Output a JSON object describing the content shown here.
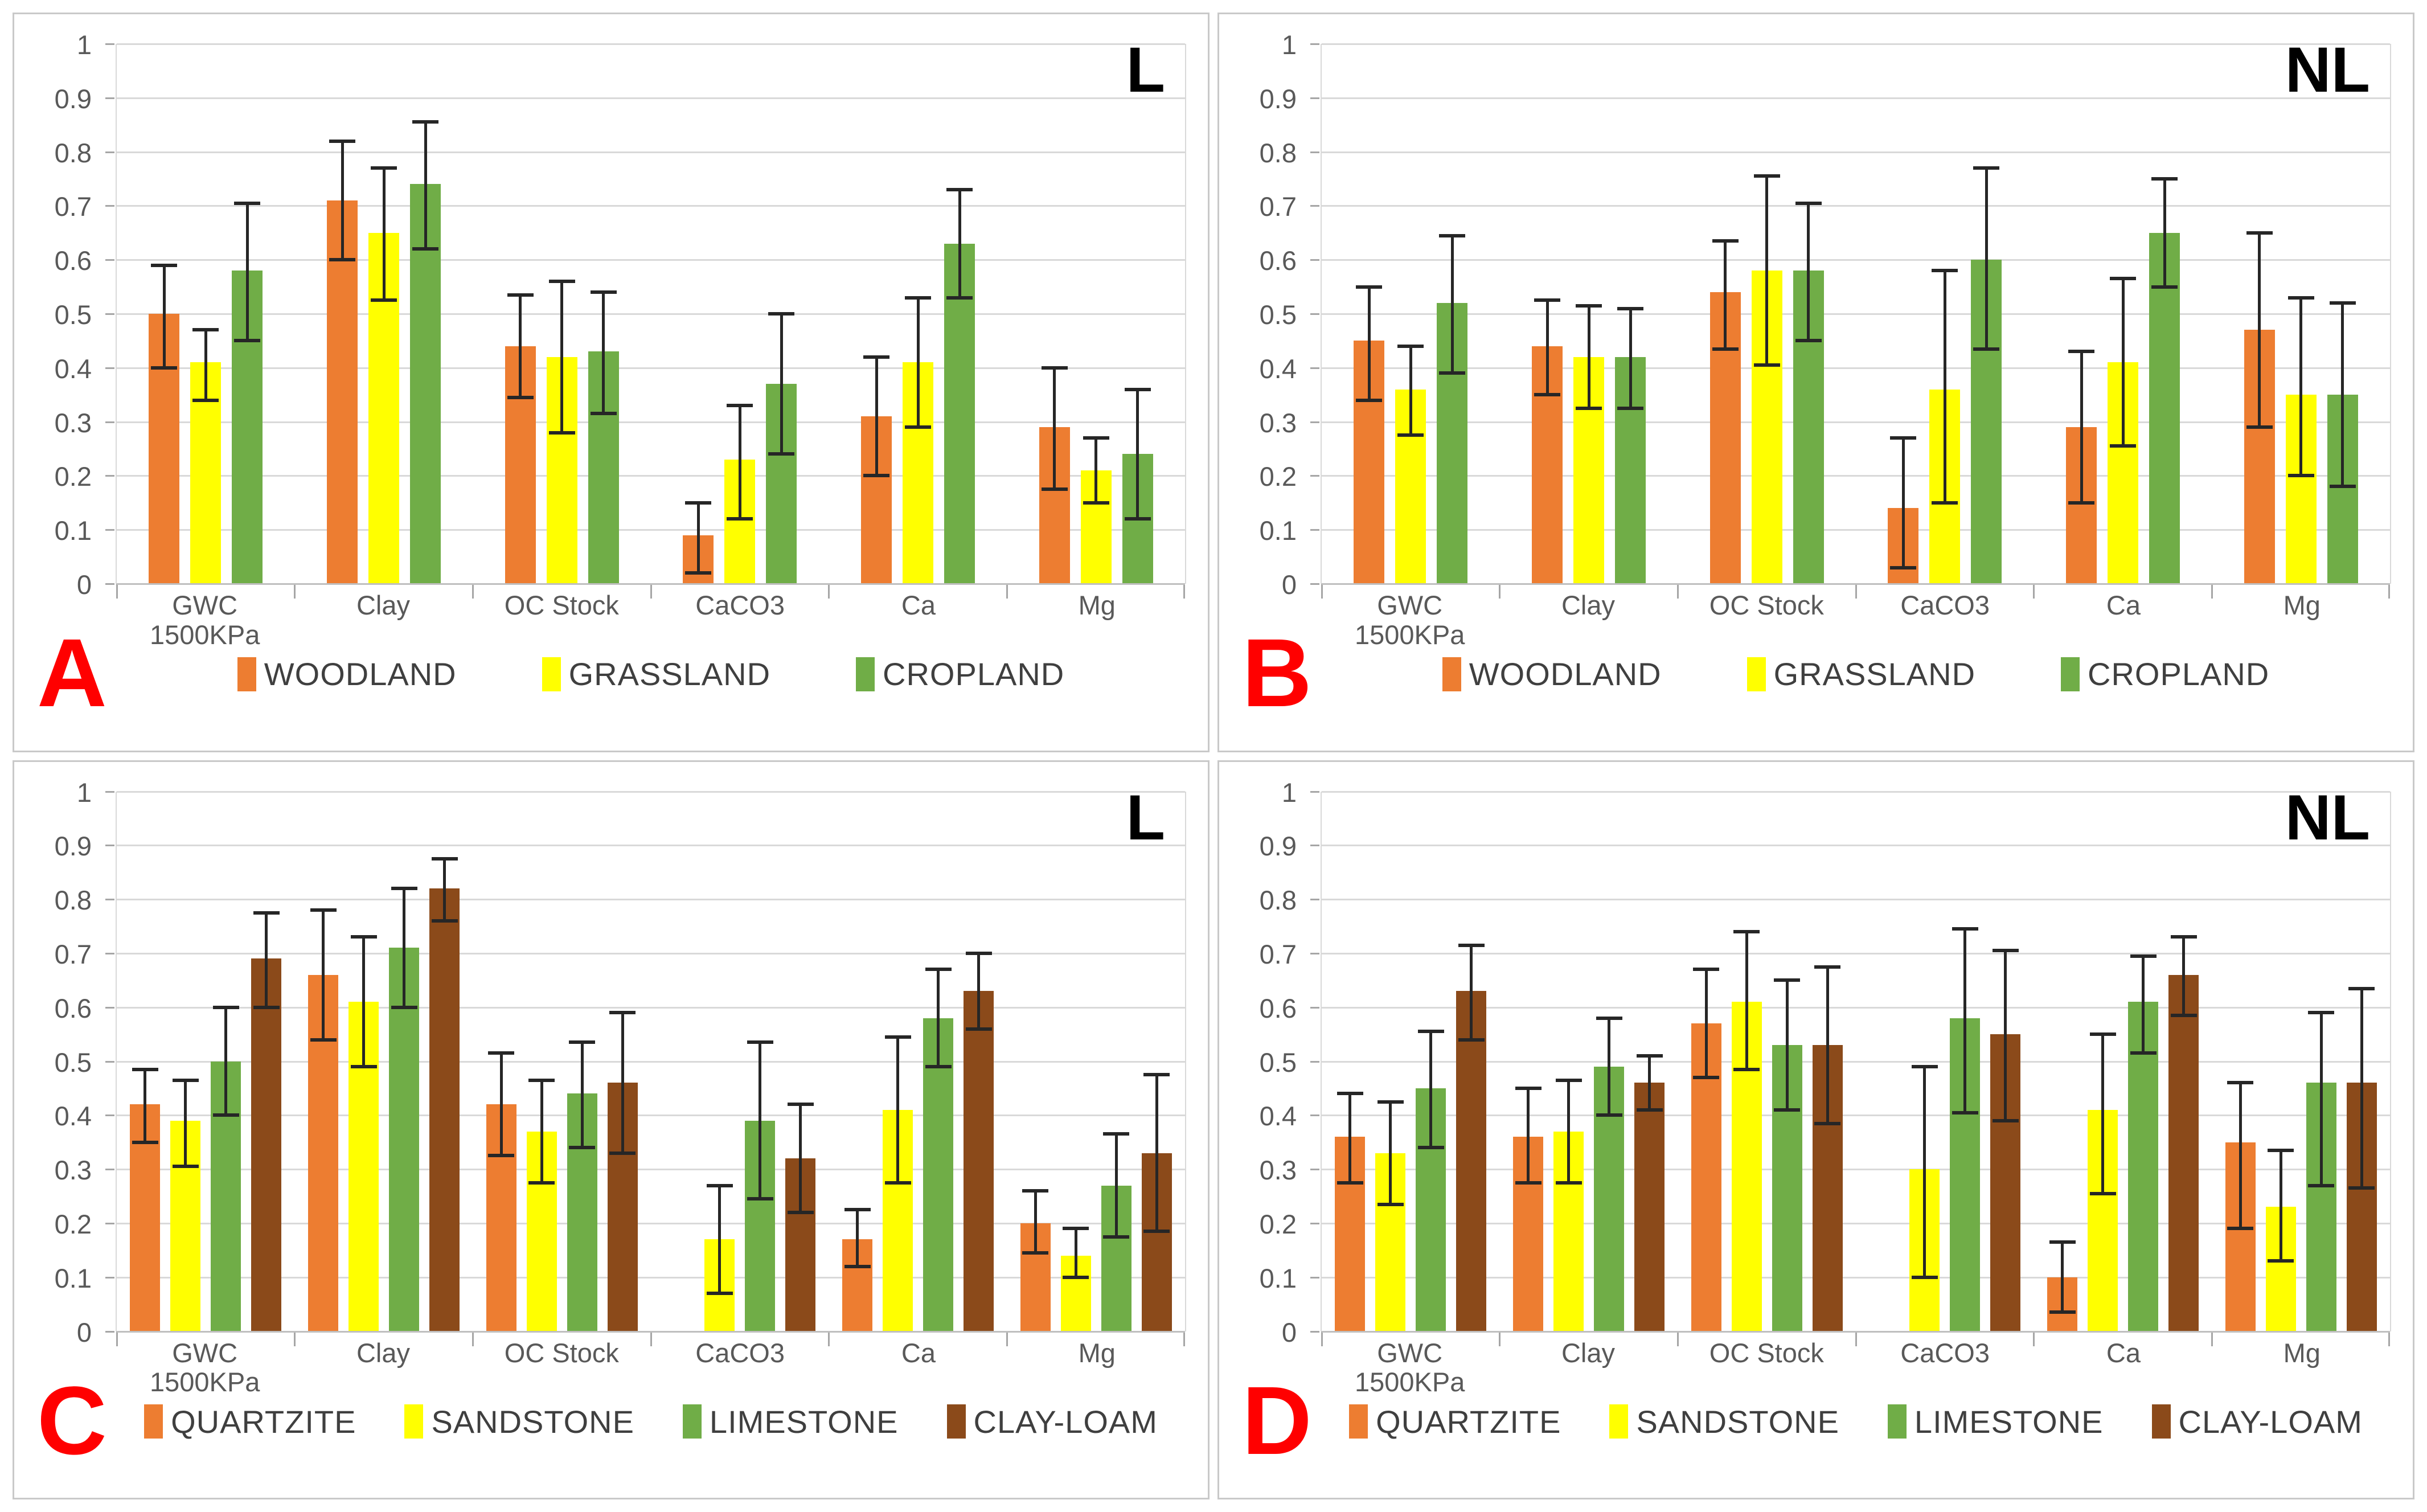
{
  "styles": {
    "grid_color": "#D9D9D9",
    "axis_line_color": "#BFBFBF",
    "tick_color": "#A6A6A6",
    "error_bar_color": "#262626",
    "axis_text_color": "#595959",
    "legend_text_color": "#3F3F3F",
    "panel_letter_color": "#FF0000",
    "corner_label_color": "#000000",
    "panel_border_color": "#C9C9C9",
    "background": "#FFFFFF"
  },
  "chart_data": [
    {
      "type": "bar",
      "panel_letter": "A",
      "corner_label": "L",
      "categories": [
        "GWC 1500KPa",
        "Clay",
        "OC Stock",
        "CaCO3",
        "Ca",
        "Mg"
      ],
      "ylim": [
        0,
        1
      ],
      "y_tick_labels": [
        "1",
        "0.9",
        "0.8",
        "0.7",
        "0.6",
        "0.5",
        "0.4",
        "0.3",
        "0.2",
        "0.1",
        "0"
      ],
      "grid": true,
      "legend_position": "bottom",
      "error_bars": true,
      "series": [
        {
          "name": "WOODLAND",
          "color": "#ED7D31",
          "values": [
            0.5,
            0.71,
            0.44,
            0.09,
            0.31,
            0.29
          ],
          "err_lo": [
            0.4,
            0.6,
            0.345,
            0.02,
            0.2,
            0.175
          ],
          "err_hi": [
            0.59,
            0.82,
            0.535,
            0.15,
            0.42,
            0.4
          ]
        },
        {
          "name": "GRASSLAND",
          "color": "#FFFF00",
          "values": [
            0.41,
            0.65,
            0.42,
            0.23,
            0.41,
            0.21
          ],
          "err_lo": [
            0.34,
            0.525,
            0.28,
            0.12,
            0.29,
            0.15
          ],
          "err_hi": [
            0.47,
            0.77,
            0.56,
            0.33,
            0.53,
            0.27
          ]
        },
        {
          "name": "CROPLAND",
          "color": "#70AD47",
          "values": [
            0.58,
            0.74,
            0.43,
            0.37,
            0.63,
            0.24
          ],
          "err_lo": [
            0.45,
            0.62,
            0.315,
            0.24,
            0.53,
            0.12
          ],
          "err_hi": [
            0.705,
            0.855,
            0.54,
            0.5,
            0.73,
            0.36
          ]
        }
      ]
    },
    {
      "type": "bar",
      "panel_letter": "B",
      "corner_label": "NL",
      "categories": [
        "GWC 1500KPa",
        "Clay",
        "OC Stock",
        "CaCO3",
        "Ca",
        "Mg"
      ],
      "ylim": [
        0,
        1
      ],
      "y_tick_labels": [
        "1",
        "0.9",
        "0.8",
        "0.7",
        "0.6",
        "0.5",
        "0.4",
        "0.3",
        "0.2",
        "0.1",
        "0"
      ],
      "grid": true,
      "legend_position": "bottom",
      "error_bars": true,
      "series": [
        {
          "name": "WOODLAND",
          "color": "#ED7D31",
          "values": [
            0.45,
            0.44,
            0.54,
            0.14,
            0.29,
            0.47
          ],
          "err_lo": [
            0.34,
            0.35,
            0.435,
            0.03,
            0.15,
            0.29
          ],
          "err_hi": [
            0.55,
            0.525,
            0.635,
            0.27,
            0.43,
            0.65
          ]
        },
        {
          "name": "GRASSLAND",
          "color": "#FFFF00",
          "values": [
            0.36,
            0.42,
            0.58,
            0.36,
            0.41,
            0.35
          ],
          "err_lo": [
            0.275,
            0.325,
            0.405,
            0.15,
            0.255,
            0.2
          ],
          "err_hi": [
            0.44,
            0.515,
            0.755,
            0.58,
            0.565,
            0.53
          ]
        },
        {
          "name": "CROPLAND",
          "color": "#70AD47",
          "values": [
            0.52,
            0.42,
            0.58,
            0.6,
            0.65,
            0.35
          ],
          "err_lo": [
            0.39,
            0.325,
            0.45,
            0.435,
            0.55,
            0.18
          ],
          "err_hi": [
            0.645,
            0.51,
            0.705,
            0.77,
            0.75,
            0.52
          ]
        }
      ]
    },
    {
      "type": "bar",
      "panel_letter": "C",
      "corner_label": "L",
      "categories": [
        "GWC 1500KPa",
        "Clay",
        "OC Stock",
        "CaCO3",
        "Ca",
        "Mg"
      ],
      "ylim": [
        0,
        1
      ],
      "y_tick_labels": [
        "1",
        "0.9",
        "0.8",
        "0.7",
        "0.6",
        "0.5",
        "0.4",
        "0.3",
        "0.2",
        "0.1",
        "0"
      ],
      "grid": true,
      "legend_position": "bottom",
      "error_bars": true,
      "series": [
        {
          "name": "QUARTZITE",
          "color": "#ED7D31",
          "values": [
            0.42,
            0.66,
            0.42,
            0,
            0.17,
            0.2
          ],
          "err_lo": [
            0.35,
            0.54,
            0.325,
            null,
            0.12,
            0.145
          ],
          "err_hi": [
            0.485,
            0.78,
            0.515,
            null,
            0.225,
            0.26
          ]
        },
        {
          "name": "SANDSTONE",
          "color": "#FFFF00",
          "values": [
            0.39,
            0.61,
            0.37,
            0.17,
            0.41,
            0.14
          ],
          "err_lo": [
            0.305,
            0.49,
            0.275,
            0.07,
            0.275,
            0.1
          ],
          "err_hi": [
            0.465,
            0.73,
            0.465,
            0.27,
            0.545,
            0.19
          ]
        },
        {
          "name": "LIMESTONE",
          "color": "#70AD47",
          "values": [
            0.5,
            0.71,
            0.44,
            0.39,
            0.58,
            0.27
          ],
          "err_lo": [
            0.4,
            0.6,
            0.34,
            0.245,
            0.49,
            0.175
          ],
          "err_hi": [
            0.6,
            0.82,
            0.535,
            0.535,
            0.67,
            0.365
          ]
        },
        {
          "name": "CLAY-LOAM",
          "color": "#8B4A1A",
          "values": [
            0.69,
            0.82,
            0.46,
            0.32,
            0.63,
            0.33
          ],
          "err_lo": [
            0.6,
            0.76,
            0.33,
            0.22,
            0.56,
            0.185
          ],
          "err_hi": [
            0.775,
            0.875,
            0.59,
            0.42,
            0.7,
            0.475
          ]
        }
      ]
    },
    {
      "type": "bar",
      "panel_letter": "D",
      "corner_label": "NL",
      "categories": [
        "GWC 1500KPa",
        "Clay",
        "OC Stock",
        "CaCO3",
        "Ca",
        "Mg"
      ],
      "ylim": [
        0,
        1
      ],
      "y_tick_labels": [
        "1",
        "0.9",
        "0.8",
        "0.7",
        "0.6",
        "0.5",
        "0.4",
        "0.3",
        "0.2",
        "0.1",
        "0"
      ],
      "grid": true,
      "legend_position": "bottom",
      "error_bars": true,
      "series": [
        {
          "name": "QUARTZITE",
          "color": "#ED7D31",
          "values": [
            0.36,
            0.36,
            0.57,
            0,
            0.1,
            0.35
          ],
          "err_lo": [
            0.275,
            0.275,
            0.47,
            null,
            0.035,
            0.19
          ],
          "err_hi": [
            0.44,
            0.45,
            0.67,
            null,
            0.165,
            0.46
          ]
        },
        {
          "name": "SANDSTONE",
          "color": "#FFFF00",
          "values": [
            0.33,
            0.37,
            0.61,
            0.3,
            0.41,
            0.23
          ],
          "err_lo": [
            0.235,
            0.275,
            0.485,
            0.1,
            0.255,
            0.13
          ],
          "err_hi": [
            0.425,
            0.465,
            0.74,
            0.49,
            0.55,
            0.335
          ]
        },
        {
          "name": "LIMESTONE",
          "color": "#70AD47",
          "values": [
            0.45,
            0.49,
            0.53,
            0.58,
            0.61,
            0.46
          ],
          "err_lo": [
            0.34,
            0.4,
            0.41,
            0.405,
            0.515,
            0.27
          ],
          "err_hi": [
            0.555,
            0.58,
            0.65,
            0.745,
            0.695,
            0.59
          ]
        },
        {
          "name": "CLAY-LOAM",
          "color": "#8B4A1A",
          "values": [
            0.63,
            0.46,
            0.53,
            0.55,
            0.66,
            0.46
          ],
          "err_lo": [
            0.54,
            0.41,
            0.385,
            0.39,
            0.585,
            0.265
          ],
          "err_hi": [
            0.715,
            0.51,
            0.675,
            0.705,
            0.73,
            0.635
          ]
        }
      ]
    }
  ]
}
